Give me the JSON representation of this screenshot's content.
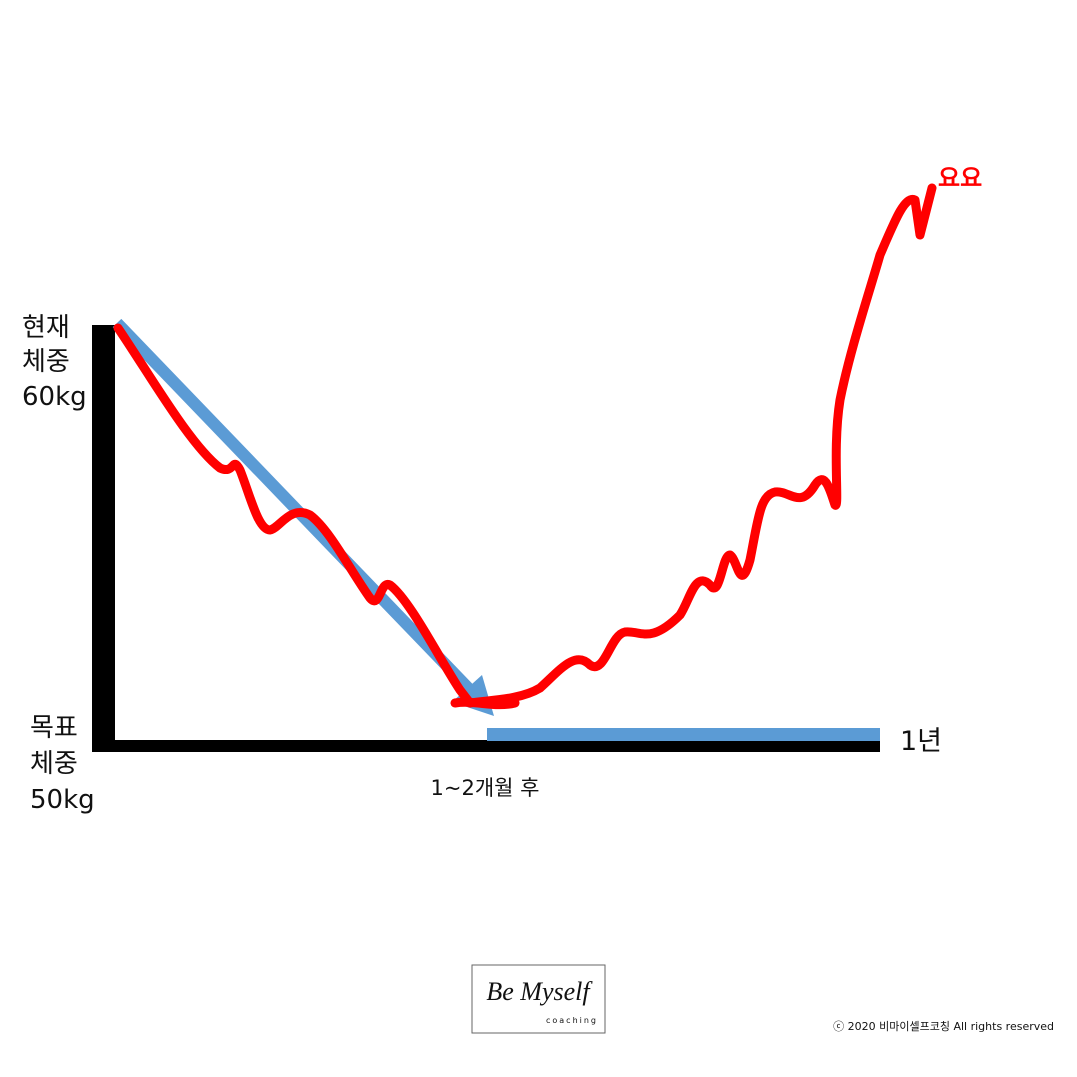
{
  "start_label": [
    "현재",
    "체중",
    "60kg"
  ],
  "goal_label": [
    "목표",
    "체중",
    "50kg"
  ],
  "mid_label": "1~2개월 후",
  "end_label": "1년",
  "yoyo_label": "요요",
  "logo": {
    "title": "Be Myself",
    "subtitle": "coaching"
  },
  "footer": "ⓒ 2020 비마이셀프코칭 All rights reserved"
}
